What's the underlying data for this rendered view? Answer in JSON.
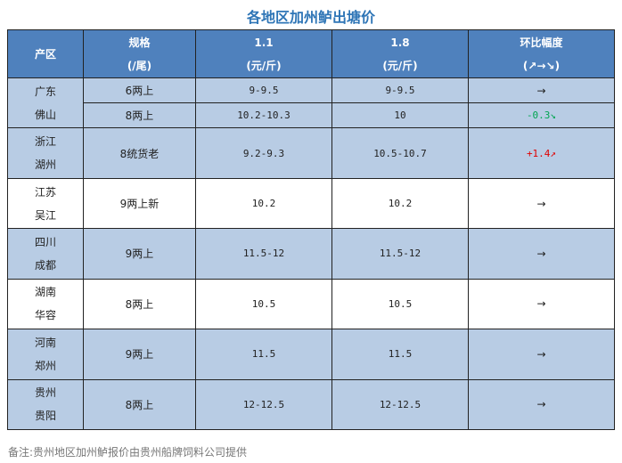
{
  "title": "各地区加州鲈出塘价",
  "header": {
    "region": "产区",
    "spec_line1": "规格",
    "spec_line2": "(/尾)",
    "col1_line1": "1.1",
    "col1_line2": "(元/斤)",
    "col2_line1": "1.8",
    "col2_line2": "(元/斤)",
    "change_line1": "环比幅度",
    "change_line2": "(↗→↘)"
  },
  "rows": [
    {
      "region_line1": "广东",
      "region_line2": "佛山",
      "sub": [
        {
          "spec": "6两上",
          "p1": "9-9.5",
          "p2": "9-9.5",
          "change": "→"
        },
        {
          "spec": "8两上",
          "p1": "10.2-10.3",
          "p2": "10",
          "change": "-0.3↘"
        }
      ]
    },
    {
      "region_line1": "浙江",
      "region_line2": "湖州",
      "spec": "8统货老",
      "p1": "9.2-9.3",
      "p2": "10.5-10.7",
      "change": "+1.4↗"
    },
    {
      "region_line1": "江苏",
      "region_line2": "吴江",
      "spec": "9两上新",
      "p1": "10.2",
      "p2": "10.2",
      "change": "→"
    },
    {
      "region_line1": "四川",
      "region_line2": "成都",
      "spec": "9两上",
      "p1": "11.5-12",
      "p2": "11.5-12",
      "change": "→"
    },
    {
      "region_line1": "湖南",
      "region_line2": "华容",
      "spec": "8两上",
      "p1": "10.5",
      "p2": "10.5",
      "change": "→"
    },
    {
      "region_line1": "河南",
      "region_line2": "郑州",
      "spec": "9两上",
      "p1": "11.5",
      "p2": "11.5",
      "change": "→"
    },
    {
      "region_line1": "贵州",
      "region_line2": "贵阳",
      "spec": "8两上",
      "p1": "12-12.5",
      "p2": "12-12.5",
      "change": "→"
    }
  ],
  "note": "备注:贵州地区加州鲈报价由贵州船牌饲料公司提供",
  "colors": {
    "header_bg": "#4f81bd",
    "band_bg": "#b8cce4",
    "title": "#2e75b6",
    "down": "#00a550",
    "up": "#e00000"
  }
}
